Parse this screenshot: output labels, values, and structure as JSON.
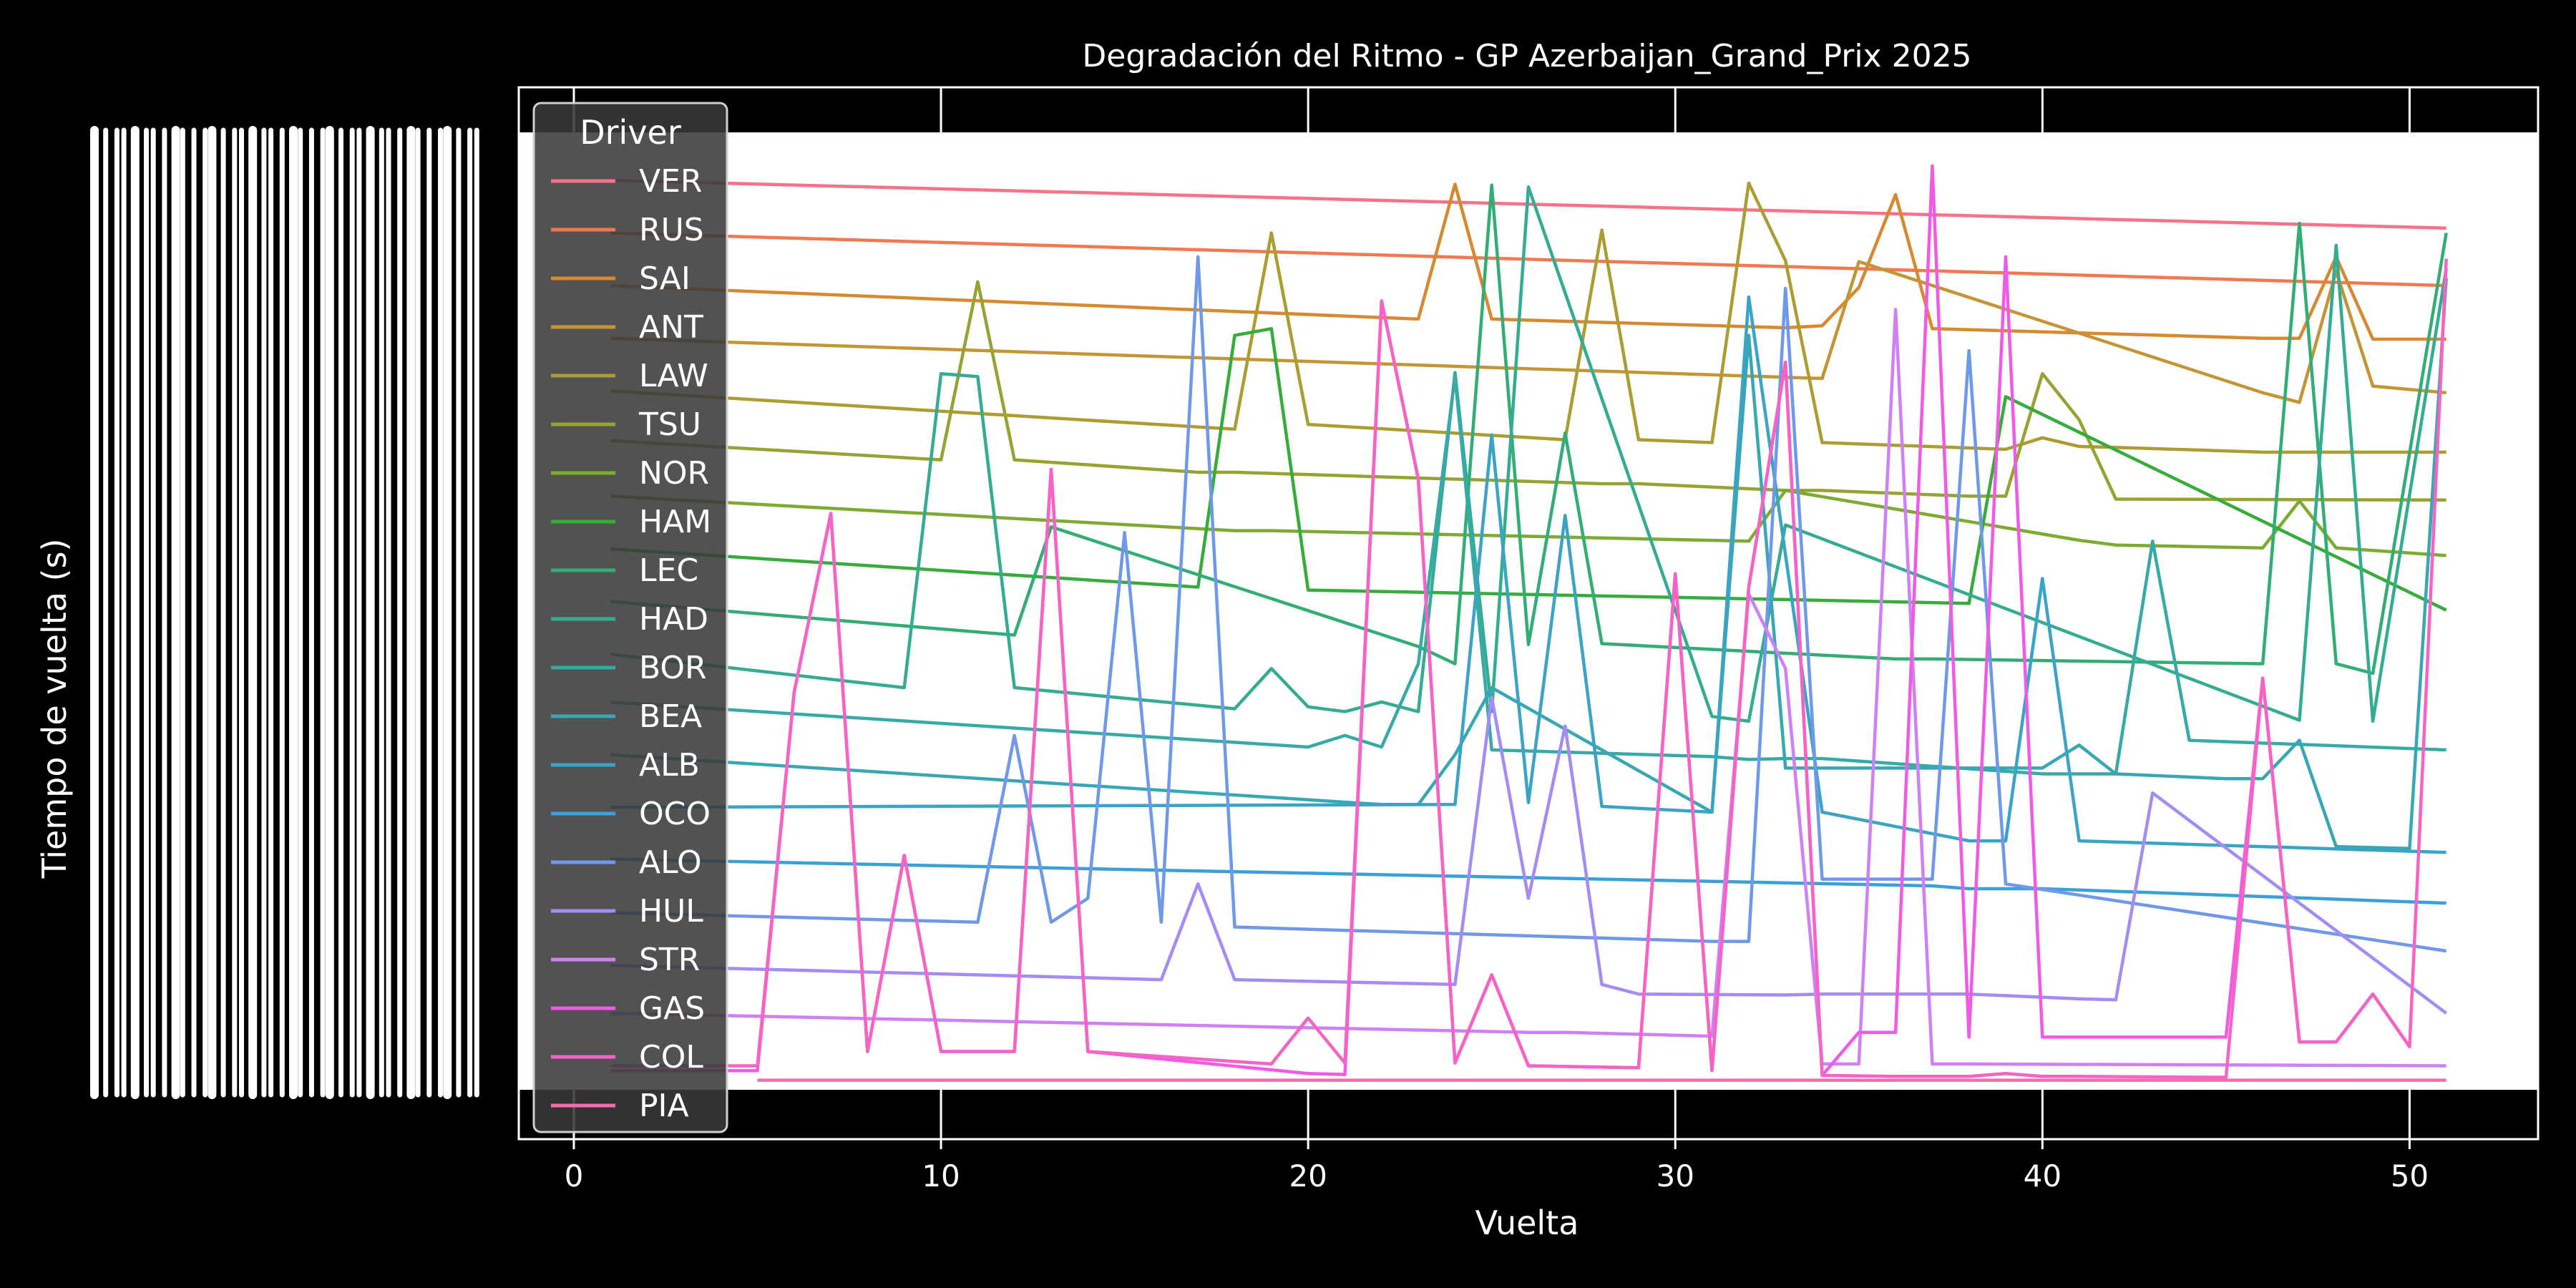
{
  "chart_data": {
    "type": "line",
    "title": "Degradación del Ritmo - GP Azerbaijan_Grand_Prix 2025",
    "xlabel": "Vuelta",
    "ylabel": "Tiempo de vuelta (s)",
    "xlim": [
      -1.5,
      53.5
    ],
    "xticks": [
      0,
      10,
      20,
      30,
      40,
      50
    ],
    "ylim": [
      0,
      100
    ],
    "y_axis_note": "y tick labels are overlapped and illegible; y values are relative estimates",
    "grid": true,
    "legend": {
      "title": "Driver",
      "placement": "top-left"
    },
    "series": [
      {
        "name": "VER",
        "color": "#f77189",
        "x": [
          1,
          51
        ],
        "values": [
          95.0,
          90.0
        ]
      },
      {
        "name": "RUS",
        "color": "#f27850",
        "x": [
          1,
          51
        ],
        "values": [
          89.5,
          84.0
        ]
      },
      {
        "name": "SAI",
        "color": "#d8892f",
        "x": [
          1,
          23,
          24,
          25,
          33,
          34,
          35,
          36,
          37,
          46,
          47,
          48,
          49,
          51
        ],
        "values": [
          84.0,
          80.5,
          94.6,
          80.5,
          79.6,
          79.8,
          83.8,
          93.5,
          79.5,
          78.5,
          78.5,
          87.0,
          78.4,
          78.4
        ]
      },
      {
        "name": "ANT",
        "color": "#c59535",
        "x": [
          1,
          34,
          35,
          46,
          47,
          48,
          49,
          51
        ],
        "values": [
          78.5,
          74.3,
          86.5,
          72.8,
          71.8,
          85.5,
          73.5,
          72.8
        ]
      },
      {
        "name": "LAW",
        "color": "#ad9c31",
        "x": [
          1,
          18,
          19,
          20,
          27,
          28,
          29,
          31,
          32,
          33,
          34,
          39,
          40,
          41,
          42,
          46,
          51
        ],
        "values": [
          73.0,
          69.0,
          89.5,
          69.5,
          67.9,
          89.8,
          67.9,
          67.6,
          94.7,
          86.6,
          67.6,
          66.9,
          68.1,
          67.2,
          67.1,
          66.6,
          66.6
        ]
      },
      {
        "name": "TSU",
        "color": "#97a331",
        "x": [
          1,
          10,
          11,
          12,
          17,
          18,
          28,
          29,
          33,
          34,
          38,
          39,
          40,
          41,
          42,
          51
        ],
        "values": [
          67.8,
          65.8,
          84.4,
          65.8,
          64.5,
          64.5,
          63.3,
          63.3,
          62.6,
          62.6,
          62.0,
          62.0,
          74.8,
          70.0,
          61.7,
          61.6
        ]
      },
      {
        "name": "NOR",
        "color": "#7dab31",
        "x": [
          1,
          18,
          19,
          32,
          33,
          41,
          42,
          46,
          47,
          48,
          51
        ],
        "values": [
          62.0,
          58.4,
          58.4,
          57.3,
          62.6,
          57.4,
          56.9,
          56.6,
          61.5,
          56.6,
          55.8
        ]
      },
      {
        "name": "HAM",
        "color": "#36ad3a",
        "x": [
          1,
          17,
          18,
          19,
          20,
          33,
          38,
          39,
          51
        ],
        "values": [
          56.5,
          52.5,
          78.8,
          79.5,
          52.2,
          51.2,
          50.8,
          72.4,
          50.1
        ]
      },
      {
        "name": "LEC",
        "color": "#32ae74",
        "x": [
          1,
          12,
          13,
          23,
          24,
          25,
          26,
          27,
          28,
          36,
          37,
          46,
          47,
          48,
          49,
          51
        ],
        "values": [
          51.0,
          47.5,
          58.8,
          46.3,
          44.5,
          94.5,
          46.5,
          68.6,
          46.6,
          45.0,
          45.0,
          44.5,
          90.5,
          44.5,
          43.5,
          89.5
        ]
      },
      {
        "name": "HAD",
        "color": "#34ac92",
        "x": [
          1,
          9,
          10,
          11,
          12,
          18,
          19,
          20,
          21,
          22,
          23,
          24,
          25,
          26,
          31,
          32,
          33,
          47,
          48,
          49,
          51
        ],
        "values": [
          45.5,
          42.0,
          74.8,
          74.5,
          42.0,
          39.8,
          44.0,
          40.0,
          39.5,
          40.5,
          39.5,
          74.9,
          39.5,
          94.3,
          39.0,
          38.5,
          59.0,
          38.6,
          88.2,
          38.5,
          85.8
        ]
      },
      {
        "name": "BOR",
        "color": "#36aaa6",
        "x": [
          1,
          20,
          21,
          22,
          23,
          24,
          25,
          31,
          32,
          33,
          34,
          40,
          41,
          42,
          43,
          44,
          51
        ],
        "values": [
          40.5,
          35.8,
          37.0,
          35.8,
          44.5,
          74.5,
          35.5,
          34.8,
          34.5,
          34.6,
          34.6,
          33.0,
          33.0,
          33.0,
          57.3,
          36.5,
          35.5
        ]
      },
      {
        "name": "BEA",
        "color": "#38a7b4",
        "x": [
          1,
          22,
          23,
          24,
          25,
          31,
          32,
          33,
          34,
          35,
          40,
          41,
          42,
          45,
          46,
          47,
          48,
          50,
          51
        ],
        "values": [
          35.0,
          29.8,
          29.8,
          35.0,
          42.0,
          29.0,
          78.8,
          33.6,
          33.6,
          33.6,
          33.6,
          36.0,
          33.0,
          32.5,
          32.5,
          36.5,
          25.4,
          25.2,
          84.8
        ]
      },
      {
        "name": "ALB",
        "color": "#39a4c4",
        "x": [
          1,
          24,
          25,
          26,
          27,
          28,
          31,
          32,
          34,
          38,
          39,
          40,
          41,
          51
        ],
        "values": [
          29.5,
          29.8,
          68.4,
          30.0,
          60.0,
          29.6,
          29.0,
          82.8,
          29.0,
          26.0,
          26.0,
          53.4,
          26.0,
          24.8
        ]
      },
      {
        "name": "OCO",
        "color": "#3ba0d8",
        "x": [
          1,
          37,
          38,
          39,
          40,
          51
        ],
        "values": [
          24.1,
          21.3,
          21.0,
          21.0,
          21.0,
          19.5
        ]
      },
      {
        "name": "ALO",
        "color": "#6f98e9",
        "x": [
          1,
          11,
          12,
          13,
          14,
          15,
          16,
          17,
          18,
          31,
          32,
          33,
          34,
          37,
          38,
          39,
          51
        ],
        "values": [
          18.5,
          17.5,
          37.0,
          17.5,
          20.0,
          58.2,
          17.5,
          87.0,
          17.0,
          15.5,
          15.5,
          83.7,
          22.0,
          22.0,
          77.2,
          21.5,
          14.5
        ]
      },
      {
        "name": "HUL",
        "color": "#a48cf4",
        "x": [
          1,
          16,
          17,
          18,
          24,
          25,
          26,
          27,
          28,
          29,
          33,
          34,
          35,
          36,
          37,
          38,
          41,
          42,
          43,
          51
        ],
        "values": [
          13.0,
          11.5,
          21.5,
          11.5,
          11.0,
          41.0,
          20.0,
          38.0,
          11.0,
          10.0,
          9.9,
          10.0,
          10.0,
          10.0,
          10.0,
          10.0,
          9.5,
          9.4,
          31.0,
          8.0
        ]
      },
      {
        "name": "STR",
        "color": "#ce80f4",
        "x": [
          1,
          26,
          27,
          31,
          32,
          33,
          34,
          35,
          36,
          37,
          38,
          51
        ],
        "values": [
          8.0,
          6.0,
          6.0,
          5.6,
          51.8,
          44.0,
          2.7,
          2.7,
          81.5,
          2.7,
          2.7,
          2.5
        ]
      },
      {
        "name": "GAS",
        "color": "#f05ae4",
        "x": [
          1,
          5,
          6,
          7,
          8,
          9,
          10,
          12,
          13,
          14,
          20,
          21,
          22,
          23,
          24,
          25,
          26,
          29,
          30,
          31,
          32,
          33,
          34,
          35,
          36,
          37,
          38,
          39,
          40,
          41,
          45,
          46,
          47,
          48,
          49,
          50
        ],
        "values": [
          2.0,
          2.0,
          41.5,
          60.2,
          4.0,
          24.5,
          4.0,
          4.0,
          64.8,
          4.0,
          1.7,
          1.6,
          82.4,
          63.8,
          2.8,
          12.0,
          2.5,
          2.3,
          53.9,
          2.0,
          52.5,
          76.0,
          1.5,
          6.0,
          6.0,
          96.5,
          5.5,
          87.0,
          5.5,
          5.5,
          5.5,
          43.0,
          5.0,
          5.0,
          10.0,
          4.5
        ]
      },
      {
        "name": "COL",
        "color": "#f564c5",
        "x": [
          1,
          5,
          6,
          7,
          8,
          9,
          10,
          12,
          13,
          14,
          19,
          20,
          21,
          22,
          23,
          24,
          25,
          26,
          29,
          30,
          31,
          32,
          33,
          34,
          36,
          37,
          38,
          39,
          40,
          41,
          45,
          46,
          47,
          48,
          49,
          50,
          51
        ],
        "values": [
          2.5,
          2.5,
          41.5,
          60.2,
          4.0,
          24.5,
          4.0,
          4.0,
          64.8,
          4.0,
          2.7,
          7.5,
          2.8,
          82.4,
          63.8,
          2.8,
          12.0,
          2.5,
          2.3,
          53.9,
          2.0,
          52.5,
          76.0,
          1.5,
          1.4,
          1.4,
          1.4,
          1.7,
          1.4,
          1.4,
          1.3,
          43.0,
          5.0,
          5.0,
          10.0,
          4.5,
          86.8
        ]
      },
      {
        "name": "PIA",
        "color": "#f66cab",
        "x": [
          5,
          51
        ],
        "values": [
          1.0,
          1.0
        ]
      }
    ]
  }
}
